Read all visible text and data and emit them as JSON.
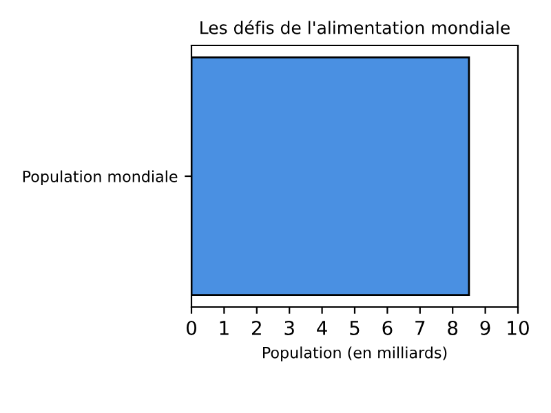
{
  "chart_data": {
    "type": "bar",
    "orientation": "horizontal",
    "title": "Les défis de l'alimentation mondiale",
    "xlabel": "Population (en milliards)",
    "categories": [
      "Population mondiale"
    ],
    "series": [
      {
        "color": "#4a90e2",
        "values": [
          8.5
        ]
      }
    ],
    "xlim": [
      0,
      10
    ],
    "xticks": [
      0,
      1,
      2,
      3,
      4,
      5,
      6,
      7,
      8,
      9,
      10
    ],
    "grid": false,
    "legend": false
  }
}
